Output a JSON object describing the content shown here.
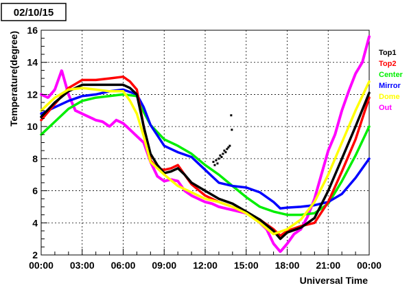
{
  "chart_data": {
    "type": "line",
    "title": "02/10/15",
    "xlabel": "Universal Time",
    "ylabel": "Temperature(degree)",
    "xlim": [
      0,
      24
    ],
    "ylim": [
      2,
      16
    ],
    "x_ticks": [
      {
        "value": 0,
        "label": "00:00"
      },
      {
        "value": 3,
        "label": "03:00"
      },
      {
        "value": 6,
        "label": "06:00"
      },
      {
        "value": 9,
        "label": "09:00"
      },
      {
        "value": 12,
        "label": "12:00"
      },
      {
        "value": 15,
        "label": "15:00"
      },
      {
        "value": 18,
        "label": "18:00"
      },
      {
        "value": 21,
        "label": "21:00"
      },
      {
        "value": 24,
        "label": "00:00"
      }
    ],
    "y_ticks": [
      {
        "value": 2,
        "label": "2"
      },
      {
        "value": 4,
        "label": "4"
      },
      {
        "value": 6,
        "label": "6"
      },
      {
        "value": 8,
        "label": "8"
      },
      {
        "value": 10,
        "label": "10"
      },
      {
        "value": 12,
        "label": "12"
      },
      {
        "value": 14,
        "label": "14"
      },
      {
        "value": 16,
        "label": "16"
      }
    ],
    "grid": true,
    "legend_position": "right",
    "series": [
      {
        "name": "Top1",
        "color": "#000000",
        "x": [
          0,
          1,
          2,
          3,
          4,
          5,
          6,
          6.5,
          7,
          7.5,
          8,
          8.5,
          9,
          9.5,
          10,
          10.5,
          11,
          12,
          13,
          14,
          15,
          16,
          17,
          17.5,
          18,
          19,
          20,
          21,
          22,
          23,
          24
        ],
        "y": [
          10.6,
          11.5,
          12.2,
          12.6,
          12.6,
          12.6,
          12.6,
          12.4,
          12.0,
          10.0,
          8.3,
          7.6,
          7.1,
          7.2,
          7.4,
          7.0,
          6.5,
          6.0,
          5.5,
          5.2,
          4.7,
          4.2,
          3.5,
          3.0,
          3.4,
          3.7,
          4.3,
          6.0,
          8.0,
          10.0,
          12.1
        ]
      },
      {
        "name": "Top2",
        "color": "#ff0000",
        "x": [
          0,
          1,
          2,
          3,
          4,
          5,
          6,
          6.5,
          7,
          7.5,
          8,
          8.5,
          9,
          9.5,
          10,
          10.5,
          11,
          12,
          13,
          14,
          15,
          16,
          17,
          17.5,
          18,
          19,
          20,
          21,
          22,
          23,
          24
        ],
        "y": [
          10.4,
          11.4,
          12.4,
          12.9,
          12.9,
          13.0,
          13.1,
          12.8,
          12.3,
          10.0,
          7.9,
          7.4,
          7.3,
          7.4,
          7.6,
          7.0,
          6.4,
          5.7,
          5.3,
          5.0,
          4.6,
          4.2,
          3.6,
          3.2,
          3.5,
          3.8,
          4.0,
          5.3,
          7.2,
          9.2,
          11.8
        ]
      },
      {
        "name": "Center",
        "color": "#00ee00",
        "x": [
          0,
          1,
          2,
          3,
          4,
          5,
          6,
          7,
          7.5,
          8,
          9,
          10,
          11,
          12,
          13,
          14,
          15,
          16,
          17,
          18,
          19,
          20,
          21,
          22,
          23,
          24
        ],
        "y": [
          9.5,
          10.3,
          11.1,
          11.6,
          11.8,
          11.9,
          12.0,
          11.9,
          10.9,
          10.1,
          9.2,
          8.8,
          8.3,
          7.6,
          7.0,
          6.3,
          5.6,
          5.0,
          4.7,
          4.5,
          4.5,
          4.6,
          5.2,
          6.6,
          8.2,
          10.0
        ]
      },
      {
        "name": "Mirror",
        "color": "#0000ff",
        "x": [
          0,
          1,
          2,
          3,
          4,
          5,
          6,
          7,
          7.5,
          8,
          9,
          10,
          11,
          12,
          13,
          14,
          15,
          16,
          17,
          17.5,
          18,
          19,
          20,
          21,
          22,
          23,
          24
        ],
        "y": [
          10.8,
          11.2,
          11.6,
          11.9,
          12.0,
          12.2,
          12.3,
          12.0,
          11.2,
          10.1,
          8.8,
          8.4,
          8.1,
          7.3,
          6.5,
          6.3,
          6.2,
          5.9,
          5.3,
          4.9,
          4.95,
          5.0,
          5.1,
          5.3,
          5.8,
          6.8,
          8.0
        ]
      },
      {
        "name": "Dome",
        "color": "#ffff00",
        "x": [
          0,
          1,
          2,
          3,
          4,
          5,
          6,
          6.5,
          7,
          7.5,
          8,
          9,
          10,
          11,
          12,
          13,
          14,
          15,
          16,
          17,
          18,
          19,
          20,
          21,
          22,
          23,
          24
        ],
        "y": [
          11.0,
          11.8,
          12.3,
          12.4,
          12.3,
          12.2,
          12.2,
          11.6,
          10.8,
          9.4,
          7.8,
          7.0,
          6.3,
          5.9,
          5.5,
          5.3,
          5.0,
          4.6,
          4.0,
          3.3,
          3.6,
          4.2,
          5.3,
          7.0,
          9.0,
          11.0,
          12.8
        ]
      },
      {
        "name": "Out",
        "color": "#ff00ff",
        "x": [
          0,
          0.5,
          1,
          1.5,
          2,
          2.5,
          3,
          3.5,
          4,
          4.5,
          5,
          5.5,
          6,
          6.5,
          7,
          7.5,
          8,
          8.5,
          9,
          9.5,
          10,
          10.5,
          11,
          11.5,
          12,
          12.5,
          13,
          13.5,
          14,
          14.5,
          15,
          15.5,
          16,
          16.5,
          17,
          17.5,
          18,
          18.5,
          19,
          19.5,
          20,
          20.5,
          21,
          21.5,
          22,
          22.5,
          23,
          23.5,
          24
        ],
        "y": [
          12.0,
          11.8,
          12.3,
          13.5,
          12.0,
          11.0,
          10.8,
          10.6,
          10.4,
          10.3,
          10.0,
          10.4,
          10.2,
          9.8,
          9.4,
          9.0,
          7.8,
          6.9,
          6.6,
          6.7,
          6.6,
          6.0,
          5.7,
          5.5,
          5.3,
          5.2,
          5.0,
          4.9,
          4.8,
          4.7,
          4.6,
          4.4,
          4.0,
          3.6,
          2.7,
          2.2,
          2.7,
          3.3,
          3.6,
          4.4,
          5.5,
          7.0,
          8.5,
          9.5,
          11.0,
          12.2,
          13.3,
          14.0,
          15.6
        ]
      },
      {
        "name": "",
        "color": "#000000",
        "mode": "markers",
        "x": [
          12.6,
          12.7,
          12.8,
          12.9,
          13.0,
          13.1,
          13.2,
          13.3,
          13.4,
          13.5,
          13.6,
          13.7,
          13.8,
          13.9,
          13.95
        ],
        "y": [
          7.8,
          7.6,
          7.9,
          7.7,
          8.0,
          8.2,
          8.1,
          8.3,
          8.5,
          8.4,
          8.6,
          8.7,
          8.8,
          10.7,
          9.8
        ]
      }
    ]
  }
}
